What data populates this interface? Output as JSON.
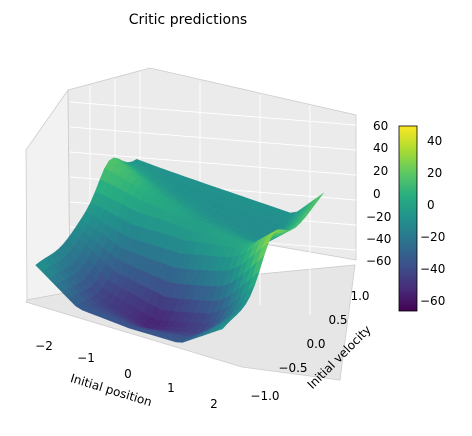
{
  "chart_data": {
    "type": "surface3d",
    "title": "Critic predictions",
    "xlabel": "Initial position",
    "ylabel": "Initial velocity",
    "zlabel": "",
    "xlim": [
      -2.4,
      2.4
    ],
    "ylim": [
      -1.2,
      1.2
    ],
    "zlim": [
      -70,
      62
    ],
    "x_ticks": [
      "−2",
      "−1",
      "0",
      "1",
      "2"
    ],
    "y_ticks": [
      "−1.0",
      "−0.5",
      "0.0",
      "0.5",
      "1.0"
    ],
    "z_ticks": [
      "60",
      "40",
      "20",
      "0",
      "−20",
      "−40",
      "−60"
    ],
    "colorbar_ticks": [
      "40",
      "20",
      "0",
      "−20",
      "−40",
      "−60"
    ],
    "colorbar_range": [
      -65,
      48
    ],
    "colormap": "viridis",
    "grid": true,
    "surface_summary": {
      "x_range": [
        -2.2,
        2.2
      ],
      "y_range": [
        -1.1,
        1.1
      ],
      "z_min": -65,
      "z_max": 48
    }
  }
}
